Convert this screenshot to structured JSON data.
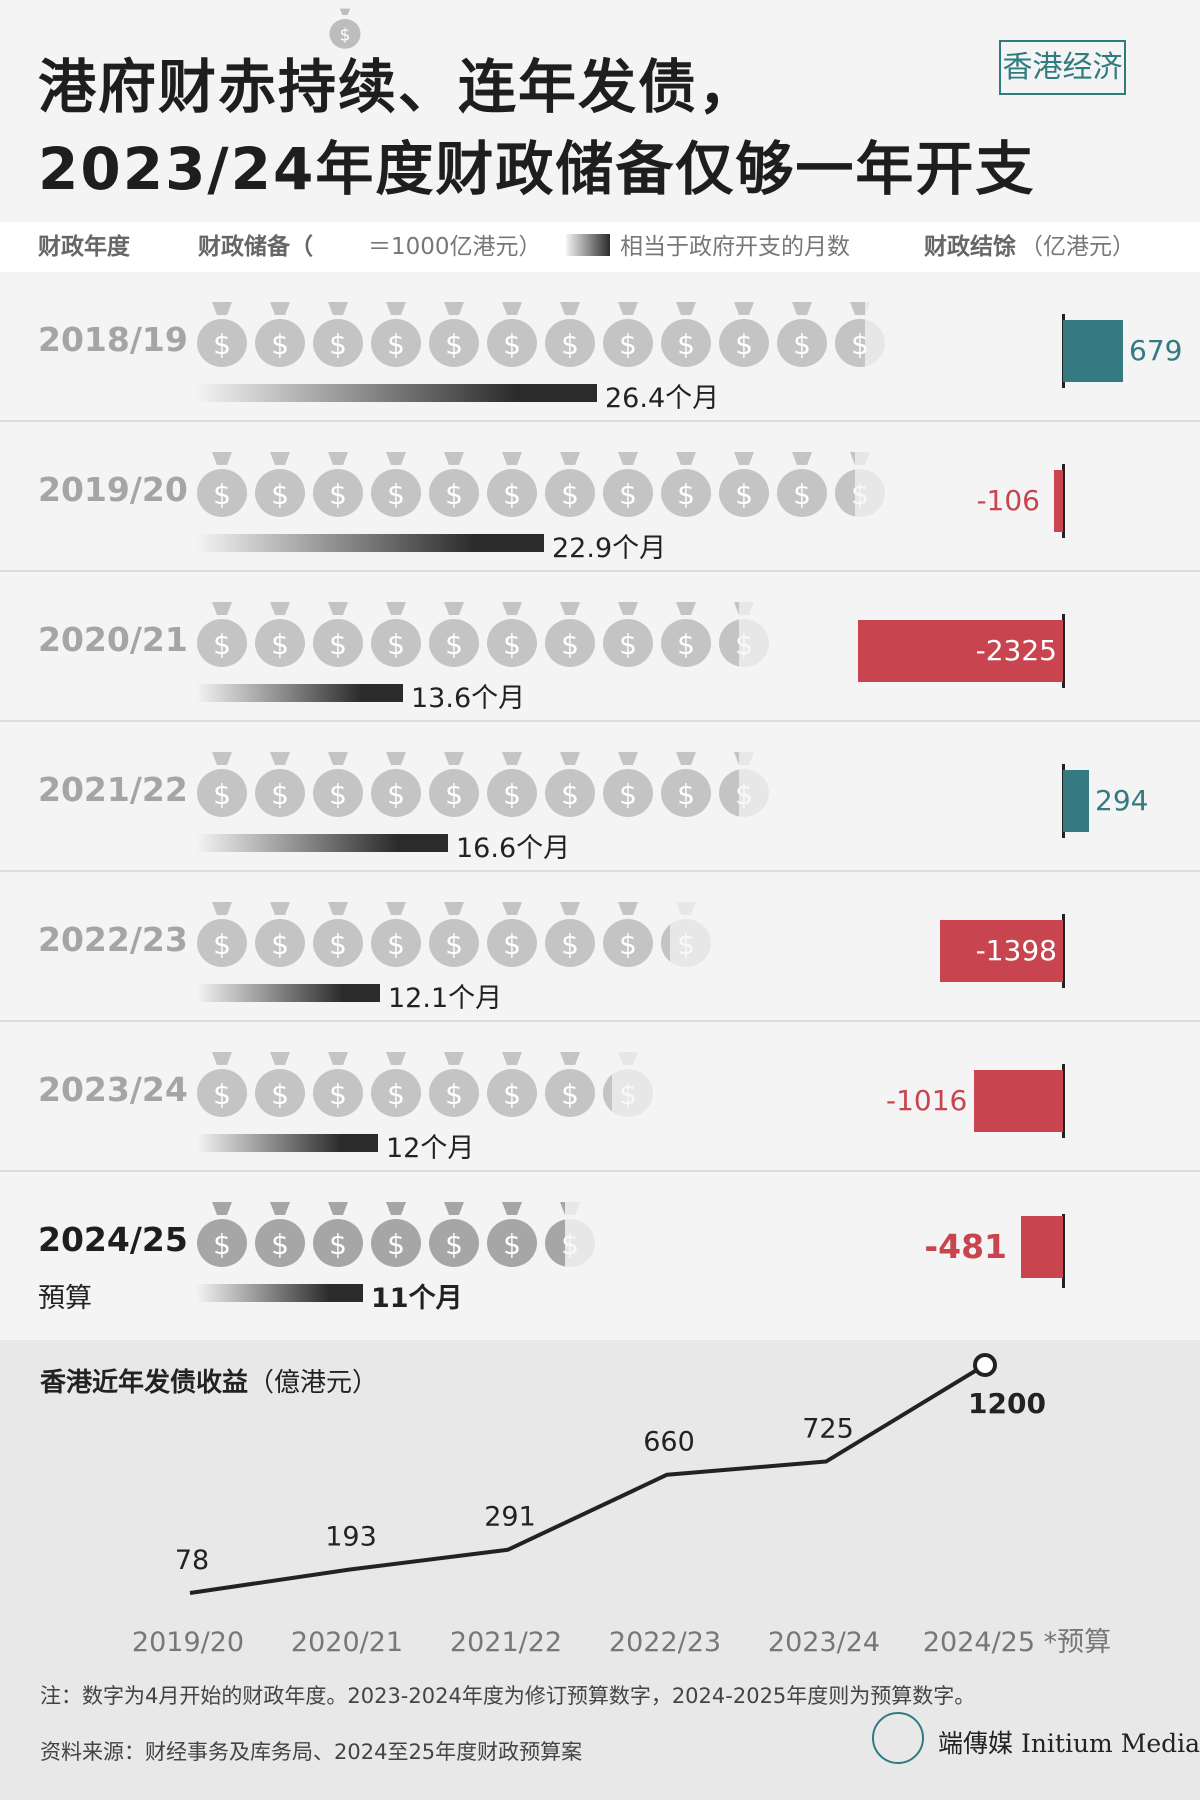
{
  "header": {
    "title_line1": "港府财赤持续、连年发债，",
    "title_line2": "2023/24年度财政储备仅够一年开支",
    "tag": "香港经济"
  },
  "legend": {
    "year_col": "财政年度",
    "reserve_col": "财政储备（",
    "reserve_unit": "＝1000亿港元）",
    "months_label": "相当于政府开支的月数",
    "surplus_col": "财政结馀",
    "surplus_unit": "（亿港元）"
  },
  "colors": {
    "surplus": "#357a80",
    "deficit": "#c8444f",
    "bag": "#c4c4c4",
    "bag_current": "#a6a6a6"
  },
  "chart_data": [
    {
      "type": "table",
      "columns": [
        "财政年度",
        "财政储备（1000亿港元）",
        "相当于政府开支的月数",
        "财政结馀（亿港元）"
      ],
      "rows": [
        {
          "year": "2018/19",
          "sub": "",
          "reserve_bags": 11.6,
          "months": 26.4,
          "months_label": "26.4个月",
          "surplus": 679,
          "surplus_label": "679"
        },
        {
          "year": "2019/20",
          "sub": "",
          "reserve_bags": 11.4,
          "months": 22.9,
          "months_label": "22.9个月",
          "surplus": -106,
          "surplus_label": "-106"
        },
        {
          "year": "2020/21",
          "sub": "",
          "reserve_bags": 9.4,
          "months": 13.6,
          "months_label": "13.6个月",
          "surplus": -2325,
          "surplus_label": "-2325"
        },
        {
          "year": "2021/22",
          "sub": "",
          "reserve_bags": 9.4,
          "months": 16.6,
          "months_label": "16.6个月",
          "surplus": 294,
          "surplus_label": "294"
        },
        {
          "year": "2022/23",
          "sub": "",
          "reserve_bags": 8.2,
          "months": 12.1,
          "months_label": "12.1个月",
          "surplus": -1398,
          "surplus_label": "-1398"
        },
        {
          "year": "2023/24",
          "sub": "",
          "reserve_bags": 7.2,
          "months": 12,
          "months_label": "12个月",
          "surplus": -1016,
          "surplus_label": "-1016"
        },
        {
          "year": "2024/25",
          "sub": "預算",
          "reserve_bags": 6.4,
          "months": 11,
          "months_label": "11个月",
          "surplus": -481,
          "surplus_label": "-481"
        }
      ]
    },
    {
      "type": "line",
      "title": "香港近年发债收益",
      "unit": "（億港元）",
      "x": [
        "2019/20",
        "2020/21",
        "2021/22",
        "2022/23",
        "2023/24",
        "2024/25 *预算"
      ],
      "values": [
        78,
        193,
        291,
        660,
        725,
        1200
      ],
      "value_labels": [
        "78",
        "193",
        "291",
        "660",
        "725",
        "1200"
      ],
      "ylim": [
        0,
        1250
      ],
      "grid": false
    }
  ],
  "footer": {
    "note": "注：数字为4月开始的财政年度。2023-2024年度为修订预算数字，2024-2025年度则为预算数字。",
    "source": "资料来源：财经事务及库务局、2024至25年度财政预算案",
    "logo_text": "端傳媒 Initium Media"
  }
}
